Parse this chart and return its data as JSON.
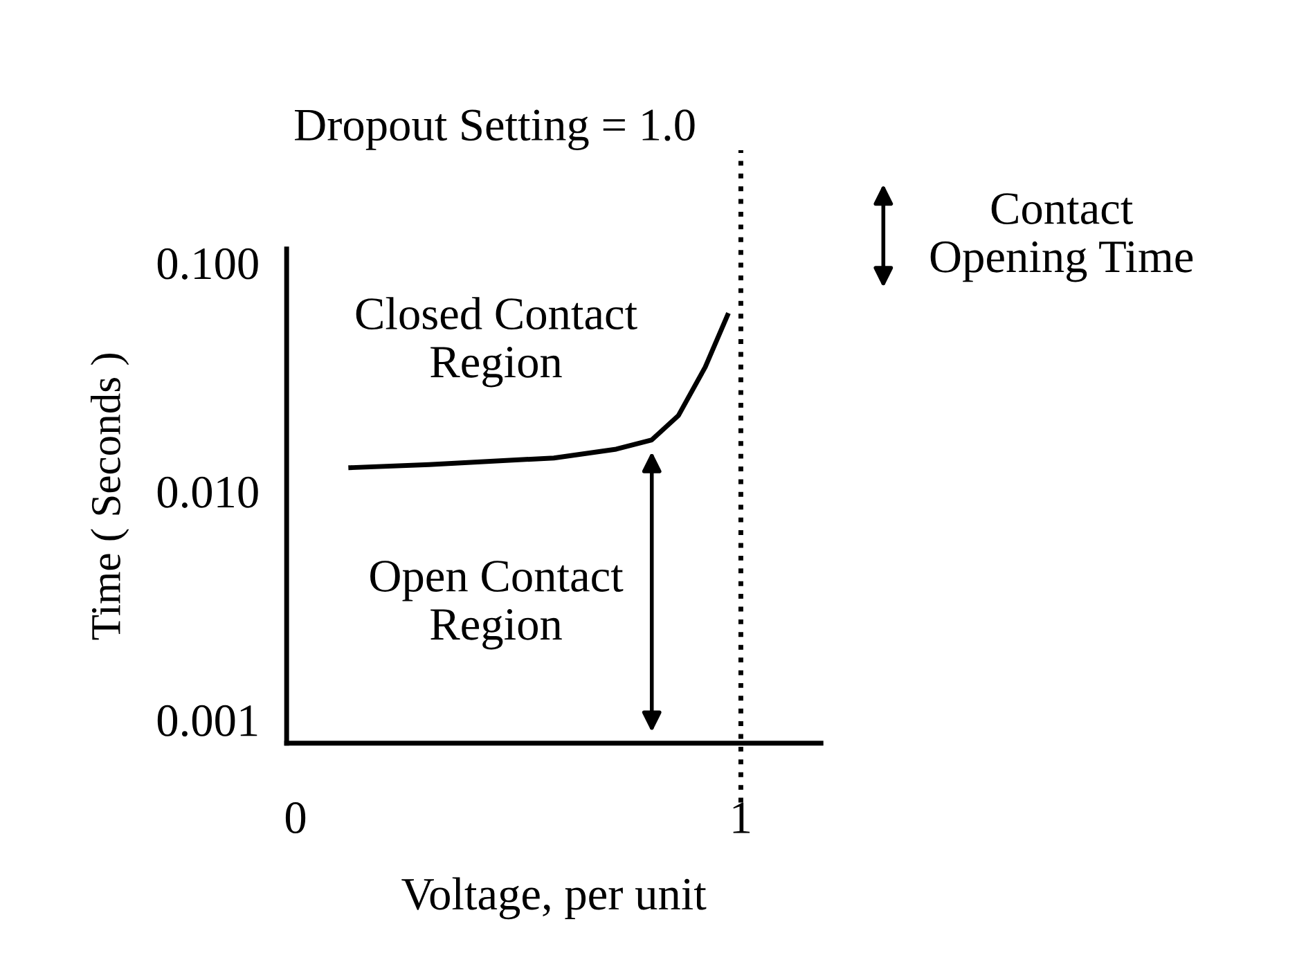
{
  "chart_data": {
    "type": "line",
    "xlabel": "Voltage, per unit",
    "ylabel": "Time ( Seconds )",
    "x": [
      0.124,
      0.3,
      0.58,
      0.72,
      0.8,
      0.86,
      0.92,
      0.97
    ],
    "series": [
      {
        "color": "#000000",
        "values": [
          0.0127,
          0.0131,
          0.014,
          0.0153,
          0.0168,
          0.0215,
          0.035,
          0.059
        ]
      }
    ],
    "log": "y",
    "xlim": [
      -0.02,
      1.18
    ],
    "ylim": [
      0.00079,
      0.115
    ],
    "xticks": [
      0,
      1
    ],
    "yticks": [
      {
        "value": 0.001,
        "label": "0.001"
      },
      {
        "value": 0.01,
        "label": "0.010"
      },
      {
        "value": 0.1,
        "label": "0.100"
      }
    ],
    "grid": false,
    "marker": "none",
    "line_style": "solid",
    "ref_lines": [
      {
        "axis": "x",
        "value": 1,
        "label": "Dropout Setting = 1.0",
        "line_style": "dotted",
        "color": "#000000"
      }
    ],
    "annotations": [
      "Closed Contact\nRegion",
      "Open Contact\nRegion",
      "Contact\nOpening Time"
    ]
  }
}
